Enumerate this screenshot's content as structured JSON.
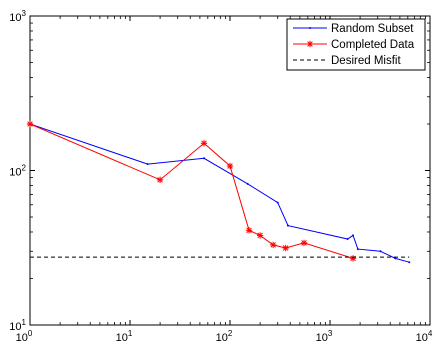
{
  "chart_data": {
    "type": "line",
    "title": "",
    "xlabel": "",
    "ylabel": "",
    "x_scale": "log",
    "y_scale": "log",
    "xlim": [
      1,
      10000
    ],
    "ylim": [
      10,
      1000
    ],
    "grid": false,
    "legend_position": "top-right",
    "x_ticks": [
      {
        "base": "10",
        "exp": "0",
        "value": 1
      },
      {
        "base": "10",
        "exp": "1",
        "value": 10
      },
      {
        "base": "10",
        "exp": "2",
        "value": 100
      },
      {
        "base": "10",
        "exp": "3",
        "value": 1000
      },
      {
        "base": "10",
        "exp": "4",
        "value": 10000
      }
    ],
    "y_ticks": [
      {
        "base": "10",
        "exp": "1",
        "value": 10
      },
      {
        "base": "10",
        "exp": "2",
        "value": 100
      },
      {
        "base": "10",
        "exp": "3",
        "value": 1000
      }
    ],
    "series": [
      {
        "name": "Random Subset",
        "color": "#0000ff",
        "marker": "dot",
        "line_style": "solid",
        "x": [
          1,
          15,
          55,
          150,
          300,
          380,
          1500,
          1700,
          1900,
          3200,
          4500,
          6200
        ],
        "y": [
          200,
          110,
          120,
          82,
          62,
          44,
          36,
          38,
          31,
          30,
          27,
          25.5
        ]
      },
      {
        "name": "Completed Data",
        "color": "#ff0000",
        "marker": "star",
        "line_style": "solid",
        "x": [
          1,
          20,
          55,
          100,
          155,
          200,
          270,
          360,
          550,
          1700
        ],
        "y": [
          200,
          87,
          150,
          107,
          41,
          38,
          33,
          31.5,
          34,
          27
        ]
      },
      {
        "name": "Desired Misfit",
        "color": "#000000",
        "marker": "none",
        "line_style": "dashed",
        "x": [
          1,
          6200
        ],
        "y": [
          27.5,
          27.5
        ]
      }
    ]
  }
}
